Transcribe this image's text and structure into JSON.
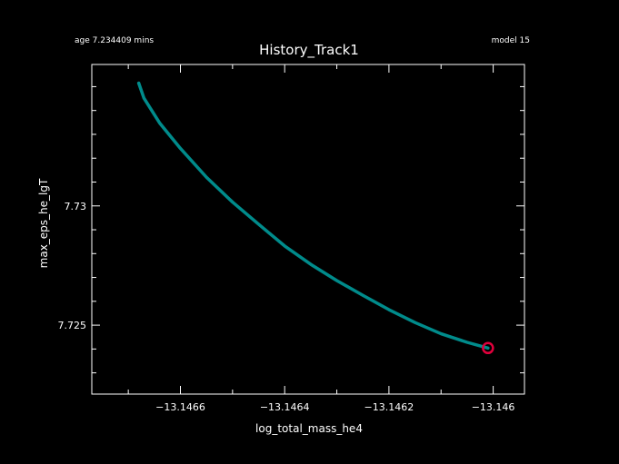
{
  "header": {
    "age_text": "age 7.234409 mins",
    "model_text": "model 15"
  },
  "chart_data": {
    "type": "line",
    "title": "History_Track1",
    "xlabel": "log_total_mass_he4",
    "ylabel": "max_eps_he_lgT",
    "xlim": [
      -13.14677,
      -13.14594
    ],
    "ylim": [
      7.72211,
      7.73593
    ],
    "x_ticks": [
      -13.1466,
      -13.1464,
      -13.1462,
      -13.146
    ],
    "x_tick_labels": [
      "−13.1466",
      "−13.1464",
      "−13.1462",
      "−13.146"
    ],
    "y_ticks": [
      7.725,
      7.73
    ],
    "y_tick_labels": [
      "7.725",
      "7.73"
    ],
    "grid": false,
    "series": [
      {
        "color": "#008b8b",
        "x": [
          -13.14668,
          -13.14667,
          -13.14664,
          -13.1466,
          -13.14655,
          -13.1465,
          -13.14645,
          -13.1464,
          -13.14635,
          -13.1463,
          -13.14625,
          -13.1462,
          -13.14615,
          -13.1461,
          -13.14605,
          -13.14601
        ],
        "y": [
          7.73515,
          7.73452,
          7.73348,
          7.73241,
          7.7312,
          7.73016,
          7.72923,
          7.72832,
          7.72755,
          7.72687,
          7.72625,
          7.72565,
          7.72511,
          7.72464,
          7.72428,
          7.72404
        ]
      }
    ],
    "current_point": {
      "x": -13.14601,
      "y": 7.72404,
      "color": "#e0003c"
    }
  }
}
